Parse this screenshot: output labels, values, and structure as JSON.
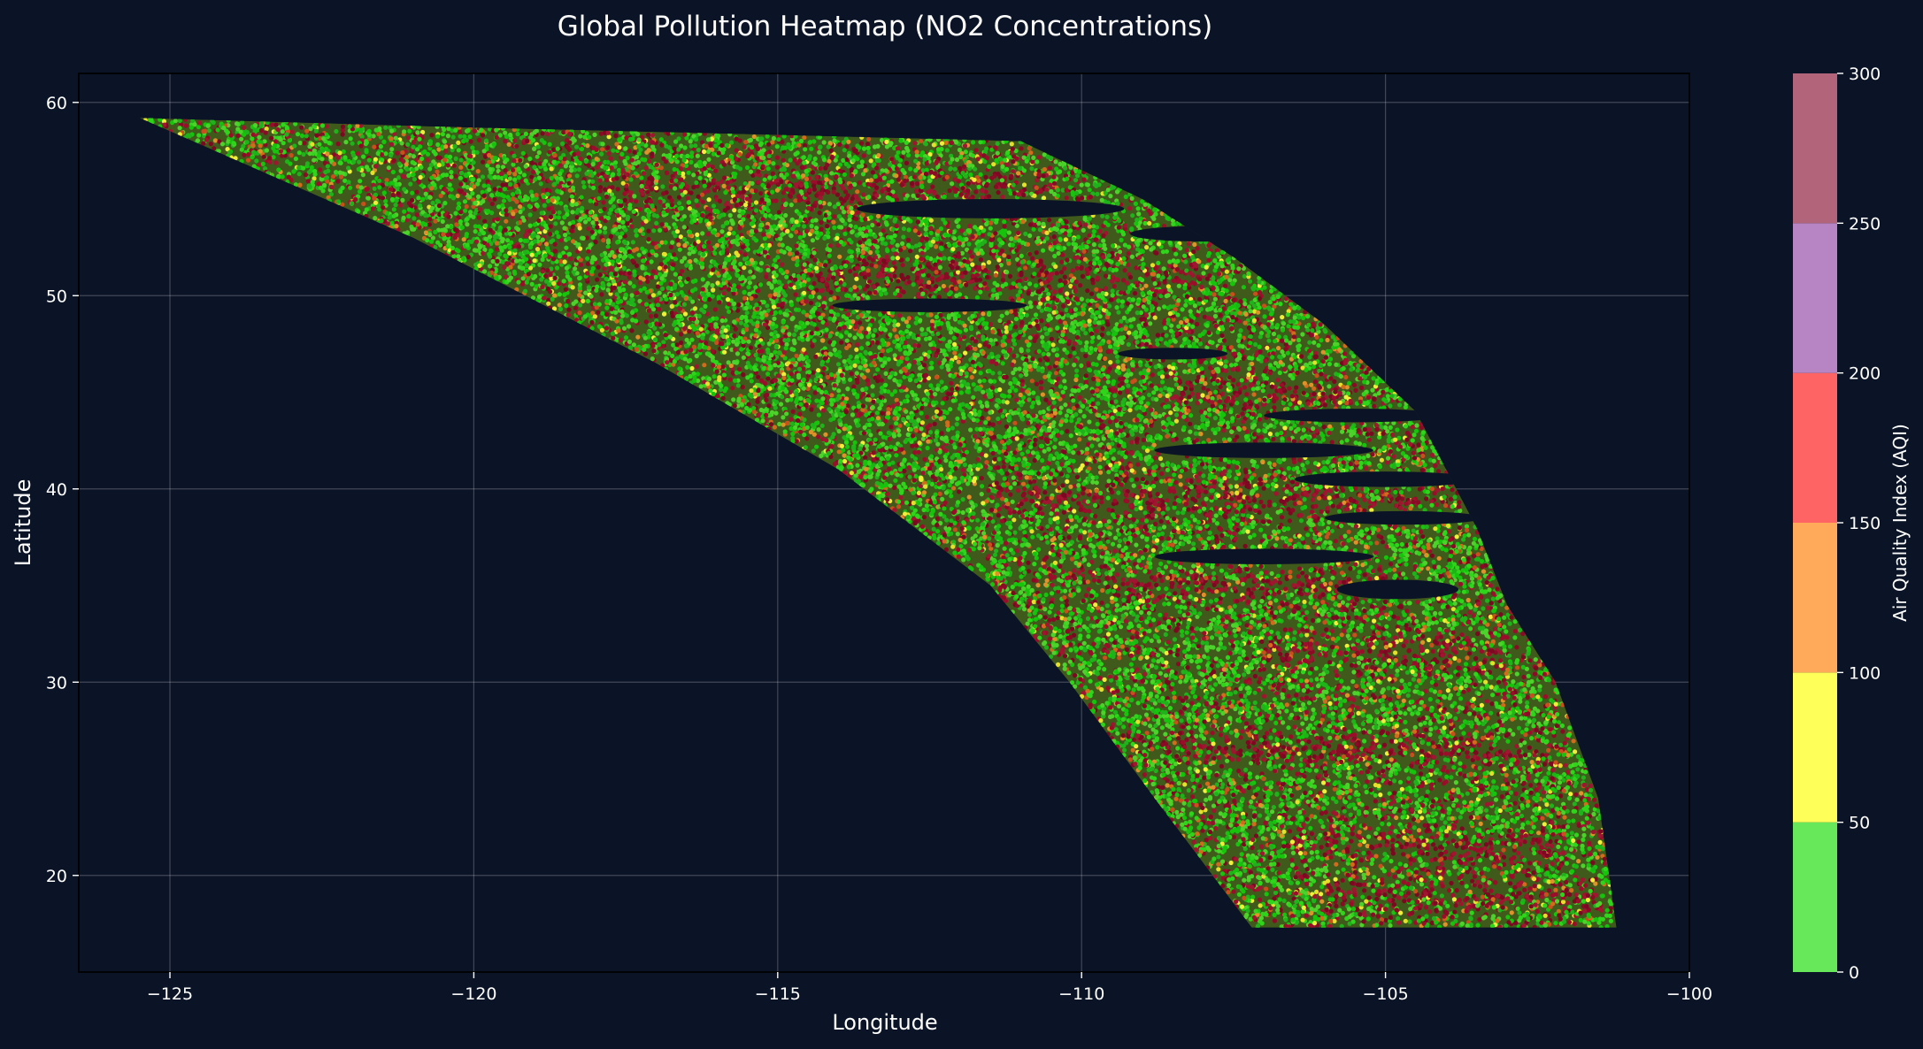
{
  "chart_data": {
    "type": "scatter",
    "title": "Global Pollution Heatmap (NO2 Concentrations)",
    "xlabel": "Longitude",
    "ylabel": "Latitude",
    "xlim": [
      -126.5,
      -100
    ],
    "ylim": [
      15,
      61.5
    ],
    "x_ticks": [
      -125,
      -120,
      -115,
      -110,
      -105,
      -100
    ],
    "x_tick_labels": [
      "−125",
      "−120",
      "−115",
      "−110",
      "−105",
      "−100"
    ],
    "y_ticks": [
      20,
      30,
      40,
      50,
      60
    ],
    "y_tick_labels": [
      "20",
      "30",
      "40",
      "50",
      "60"
    ],
    "grid": true,
    "colorbar": {
      "label": "Air Quality Index (AQI)",
      "range": [
        0,
        300
      ],
      "ticks": [
        0,
        50,
        100,
        150,
        200,
        250,
        300
      ],
      "tick_labels": [
        "0",
        "50",
        "100",
        "150",
        "200",
        "250",
        "300"
      ],
      "bands": [
        {
          "from": 0,
          "to": 50,
          "color": "#66e85a"
        },
        {
          "from": 50,
          "to": 100,
          "color": "#ffff5a"
        },
        {
          "from": 100,
          "to": 150,
          "color": "#ffaa5a"
        },
        {
          "from": 150,
          "to": 200,
          "color": "#ff6464"
        },
        {
          "from": 200,
          "to": 250,
          "color": "#b785c3"
        },
        {
          "from": 250,
          "to": 300,
          "color": "#b2647a"
        }
      ]
    },
    "region_outline": [
      [
        -125.5,
        59.2
      ],
      [
        -120.0,
        58.7
      ],
      [
        -116.0,
        58.4
      ],
      [
        -111.0,
        58.0
      ],
      [
        -109.0,
        55.0
      ],
      [
        -107.5,
        52.0
      ],
      [
        -106.0,
        48.5
      ],
      [
        -104.5,
        44.0
      ],
      [
        -103.5,
        38.0
      ],
      [
        -103.0,
        34.0
      ],
      [
        -102.2,
        30.0
      ],
      [
        -101.5,
        24.0
      ],
      [
        -101.2,
        17.3
      ],
      [
        -107.2,
        17.3
      ],
      [
        -108.8,
        24.0
      ],
      [
        -110.2,
        30.0
      ],
      [
        -111.5,
        35.0
      ],
      [
        -114.0,
        41.0
      ],
      [
        -117.0,
        46.5
      ],
      [
        -121.0,
        53.0
      ],
      [
        -125.5,
        59.2
      ]
    ],
    "hotspot_bands": [
      {
        "lat": 55.5,
        "lon_from": -118.0,
        "lon_to": -110.5
      },
      {
        "lat": 51.0,
        "lon_from": -114.5,
        "lon_to": -108.0
      },
      {
        "lat": 45.0,
        "lon_from": -108.5,
        "lon_to": -105.5
      },
      {
        "lat": 39.5,
        "lon_from": -111.5,
        "lon_to": -104.0
      },
      {
        "lat": 35.0,
        "lon_from": -110.0,
        "lon_to": -104.5
      },
      {
        "lat": 31.5,
        "lon_from": -107.0,
        "lon_to": -103.0
      },
      {
        "lat": 26.5,
        "lon_from": -108.5,
        "lon_to": -102.0
      },
      {
        "lat": 21.5,
        "lon_from": -106.5,
        "lon_to": -102.0
      },
      {
        "lat": 19.0,
        "lon_from": -106.0,
        "lon_to": -101.5
      }
    ],
    "gaps": [
      {
        "lon": -111.5,
        "lat": 54.5,
        "rx": 2.2,
        "ry": 0.5
      },
      {
        "lon": -108.0,
        "lat": 53.2,
        "rx": 1.2,
        "ry": 0.4
      },
      {
        "lon": -112.5,
        "lat": 49.5,
        "rx": 1.6,
        "ry": 0.35
      },
      {
        "lon": -108.5,
        "lat": 47.0,
        "rx": 0.9,
        "ry": 0.3
      },
      {
        "lon": -105.5,
        "lat": 43.8,
        "rx": 1.5,
        "ry": 0.35
      },
      {
        "lon": -107.0,
        "lat": 42.0,
        "rx": 1.8,
        "ry": 0.4
      },
      {
        "lon": -105.0,
        "lat": 40.5,
        "rx": 1.5,
        "ry": 0.4
      },
      {
        "lon": -104.7,
        "lat": 38.5,
        "rx": 1.3,
        "ry": 0.35
      },
      {
        "lon": -107.0,
        "lat": 36.5,
        "rx": 1.8,
        "ry": 0.4
      },
      {
        "lon": -104.8,
        "lat": 34.8,
        "rx": 1.0,
        "ry": 0.5
      }
    ]
  }
}
